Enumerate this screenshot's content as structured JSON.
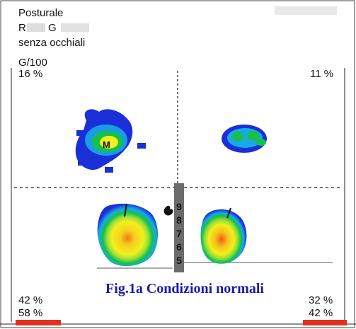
{
  "header": {
    "line1": "Posturale",
    "line2_partial": "R",
    "line2_initial": "G",
    "line3": "senza occhiali",
    "scale": "G/100"
  },
  "quadrants": {
    "top_left_percent": "16 %",
    "top_right_percent": "11 %",
    "bottom_left_percent": "42 %",
    "bottom_right_percent": "32 %",
    "total_left_percent": "58 %",
    "total_right_percent": "42 %"
  },
  "marker": {
    "label": "M"
  },
  "scale_bar": {
    "digits": [
      "9",
      "8",
      "7",
      "6",
      "5"
    ]
  },
  "caption": "Fig.1a Condizioni normali",
  "colors": {
    "caption": "#1a1ab0",
    "bar_red": "#e0301e",
    "pressure_low": "#1b2fd8",
    "pressure_mid": "#16c04a",
    "pressure_high": "#f2ef1c",
    "pressure_peak": "#f07a14"
  }
}
